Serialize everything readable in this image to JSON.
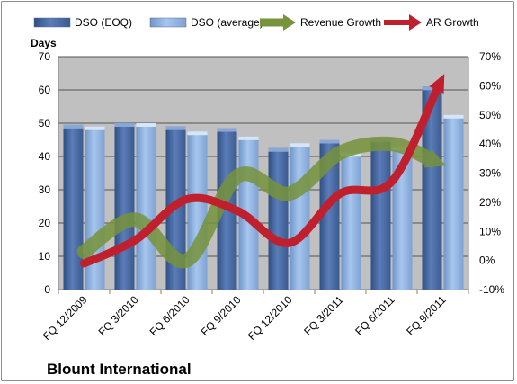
{
  "chart_data": {
    "type": "bar",
    "company_name": "Blount International",
    "left_axis": {
      "label": "Days",
      "min": 0,
      "max": 70,
      "step": 10,
      "ticks": [
        "0",
        "10",
        "20",
        "30",
        "40",
        "50",
        "60",
        "70"
      ]
    },
    "right_axis": {
      "min": -10,
      "max": 70,
      "step": 10,
      "ticks": [
        "-10%",
        "0%",
        "10%",
        "20%",
        "30%",
        "40%",
        "50%",
        "60%",
        "70%"
      ]
    },
    "categories": [
      "FQ 12/2009",
      "FQ 3/2010",
      "FQ 6/2010",
      "FQ 9/2010",
      "FQ 12/2010",
      "FQ 3/2011",
      "FQ 6/2011",
      "FQ 9/2011"
    ],
    "bar_series": [
      {
        "name": "DSO (EOQ)",
        "color": "#4f6fa8",
        "values": [
          49.5,
          50,
          49,
          48.5,
          42.5,
          45,
          45.5,
          61
        ]
      },
      {
        "name": "DSO (average)",
        "color": "#8fb4e3",
        "values": [
          49,
          50,
          47.5,
          46,
          44,
          41,
          43,
          52.5
        ]
      }
    ],
    "line_series": [
      {
        "name": "Revenue Growth",
        "color": "#77933c",
        "axis": "right",
        "unit": "%",
        "values": [
          3,
          14,
          0,
          29,
          23,
          37,
          40,
          33
        ]
      },
      {
        "name": "AR Growth",
        "color": "#c0202e",
        "axis": "right",
        "unit": "%",
        "values": [
          -1,
          7,
          21,
          17,
          6,
          23,
          27,
          63
        ]
      }
    ],
    "legend_position": "top",
    "grid": true,
    "plot_background": "#c0c0c0"
  }
}
